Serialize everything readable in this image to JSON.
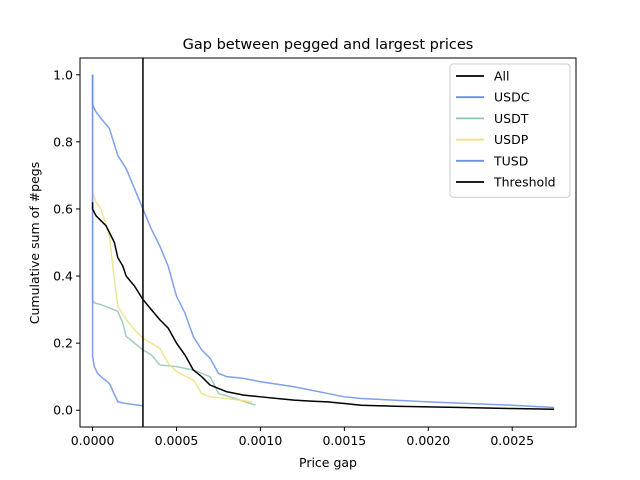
{
  "colors": {
    "All": "#000000",
    "USDC": "#6a8fe8",
    "USDT": "#92c4b2",
    "USDP": "#eddf82",
    "TUSD": "#6a8fe8",
    "Threshold": "#000000"
  },
  "chart_data": {
    "type": "line",
    "title": "Gap between pegged and largest prices",
    "xlabel": "Price gap",
    "ylabel": "Cumulative sum of #pegs",
    "xlim": [
      -7.5e-05,
      0.00288
    ],
    "ylim": [
      -0.05,
      1.05
    ],
    "xticks": [
      0.0,
      0.0005,
      0.001,
      0.0015,
      0.002,
      0.0025
    ],
    "xtick_labels": [
      "0.0000",
      "0.0005",
      "0.0010",
      "0.0015",
      "0.0020",
      "0.0025"
    ],
    "yticks": [
      0.0,
      0.2,
      0.4,
      0.6,
      0.8,
      1.0
    ],
    "ytick_labels": [
      "0.0",
      "0.2",
      "0.4",
      "0.6",
      "0.8",
      "1.0"
    ],
    "grid": false,
    "legend_position": "top-right",
    "legend": [
      "All",
      "USDC",
      "USDT",
      "USDP",
      "TUSD",
      "Threshold"
    ],
    "threshold_x": 0.0003,
    "series": [
      {
        "name": "USDT",
        "x": [
          0,
          0,
          0,
          1e-05,
          5e-05,
          0.0001,
          0.00015,
          0.00018,
          0.0002,
          0.00025,
          0.0003,
          0.00035,
          0.0004,
          0.0005,
          0.0006,
          0.0007,
          0.00075,
          0.00085,
          0.00097
        ],
        "y": [
          1.0,
          0.5,
          0.33,
          0.32,
          0.315,
          0.305,
          0.295,
          0.26,
          0.22,
          0.2,
          0.18,
          0.165,
          0.135,
          0.13,
          0.12,
          0.1,
          0.05,
          0.035,
          0.015
        ]
      },
      {
        "name": "USDP",
        "x": [
          0,
          0,
          0,
          2e-05,
          5e-05,
          0.0001,
          0.00012,
          0.00015,
          0.0002,
          0.00025,
          0.0003,
          0.0004,
          0.00045,
          0.0005,
          0.0006,
          0.00065,
          0.0007,
          0.0008,
          0.00095
        ],
        "y": [
          0.9,
          0.7,
          0.65,
          0.62,
          0.6,
          0.52,
          0.43,
          0.31,
          0.27,
          0.24,
          0.215,
          0.185,
          0.14,
          0.115,
          0.09,
          0.05,
          0.04,
          0.035,
          0.025
        ]
      },
      {
        "name": "USDC",
        "x": [
          0,
          0,
          1e-05,
          3e-05,
          5e-05,
          0.0001,
          0.00015,
          0.0002,
          0.0003
        ],
        "y": [
          1.0,
          0.16,
          0.13,
          0.11,
          0.1,
          0.08,
          0.025,
          0.02,
          0.013
        ]
      },
      {
        "name": "TUSD",
        "x": [
          0,
          0,
          2e-05,
          5e-05,
          0.0001,
          0.00015,
          0.0002,
          0.00025,
          0.0003,
          0.00035,
          0.0004,
          0.00045,
          0.0005,
          0.00055,
          0.0006,
          0.00065,
          0.0007,
          0.00075,
          0.0008,
          0.0009,
          0.001,
          0.0012,
          0.0014,
          0.0015,
          0.0016,
          0.002,
          0.0025,
          0.00275
        ],
        "y": [
          1.0,
          0.91,
          0.89,
          0.87,
          0.84,
          0.76,
          0.72,
          0.66,
          0.6,
          0.54,
          0.49,
          0.43,
          0.34,
          0.29,
          0.22,
          0.18,
          0.155,
          0.11,
          0.1,
          0.095,
          0.085,
          0.07,
          0.05,
          0.04,
          0.035,
          0.025,
          0.015,
          0.008
        ]
      },
      {
        "name": "All",
        "x": [
          0,
          0,
          2e-05,
          5e-05,
          8e-05,
          0.0001,
          0.00013,
          0.00015,
          0.00018,
          0.0002,
          0.00025,
          0.0003,
          0.00035,
          0.0004,
          0.00045,
          0.0005,
          0.00055,
          0.0006,
          0.00065,
          0.0007,
          0.00075,
          0.0008,
          0.0009,
          0.001,
          0.0011,
          0.0012,
          0.0013,
          0.0014,
          0.0015,
          0.0016,
          0.0018,
          0.002,
          0.0022,
          0.0025,
          0.00275
        ],
        "y": [
          0.62,
          0.6,
          0.58,
          0.565,
          0.55,
          0.53,
          0.5,
          0.455,
          0.43,
          0.4,
          0.37,
          0.33,
          0.3,
          0.27,
          0.245,
          0.2,
          0.165,
          0.12,
          0.1,
          0.075,
          0.065,
          0.055,
          0.045,
          0.04,
          0.035,
          0.03,
          0.027,
          0.025,
          0.02,
          0.015,
          0.012,
          0.01,
          0.008,
          0.005,
          0.003
        ]
      }
    ]
  }
}
